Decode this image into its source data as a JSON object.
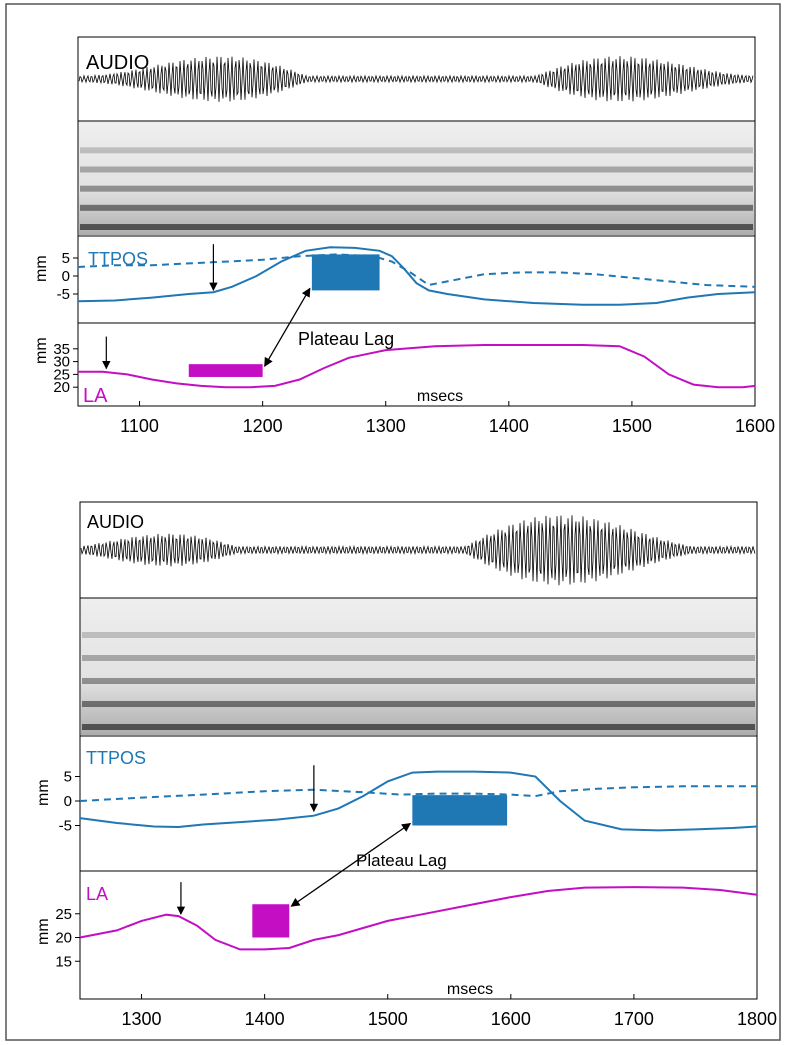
{
  "colors": {
    "ttpos": "#1f77b4",
    "la": "#c30ec3",
    "frame": "#000000",
    "border": "#555555"
  },
  "chart_data": [
    {
      "type": "line",
      "panel_labels": {
        "audio": "AUDIO",
        "ttpos": "TTPOS",
        "la": "LA"
      },
      "ttpos_ylabel": "mm",
      "la_ylabel": "mm",
      "xlabel": "msecs",
      "annotation": "Plateau Lag",
      "xlim": [
        1050,
        1600
      ],
      "xticks": [
        1100,
        1200,
        1300,
        1400,
        1500,
        1600
      ],
      "ttpos_ylim": [
        -10,
        10
      ],
      "ttpos_yticks": [
        5,
        0,
        -5
      ],
      "la_ylim": [
        15,
        40
      ],
      "la_yticks": [
        35,
        30,
        25,
        20
      ],
      "ttpos_series": [
        {
          "style": "solid",
          "x": [
            1050,
            1080,
            1110,
            1140,
            1160,
            1175,
            1195,
            1215,
            1235,
            1255,
            1275,
            1295,
            1305,
            1315,
            1325,
            1335,
            1350,
            1380,
            1420,
            1460,
            1490,
            1520,
            1545,
            1570,
            1600
          ],
          "y": [
            -7,
            -6.8,
            -6,
            -5,
            -4.5,
            -3,
            0,
            4,
            7,
            8,
            7.8,
            7,
            5.5,
            2,
            -2,
            -4,
            -5,
            -6.5,
            -7.5,
            -8,
            -8,
            -7.5,
            -6,
            -5,
            -4.5
          ]
        },
        {
          "style": "dashed",
          "x": [
            1050,
            1080,
            1110,
            1140,
            1170,
            1200,
            1230,
            1260,
            1290,
            1305,
            1320,
            1335,
            1350,
            1380,
            1410,
            1440,
            1470,
            1500,
            1530,
            1560,
            1600
          ],
          "y": [
            2.5,
            3,
            3,
            3.5,
            4,
            4.5,
            5.5,
            6,
            5.5,
            4,
            1,
            -2.5,
            -1.5,
            0.5,
            1,
            1,
            0.5,
            -0.5,
            -1.5,
            -2.5,
            -3
          ]
        }
      ],
      "la_series": {
        "x": [
          1050,
          1070,
          1090,
          1110,
          1130,
          1150,
          1170,
          1190,
          1210,
          1230,
          1250,
          1270,
          1300,
          1340,
          1380,
          1420,
          1460,
          1490,
          1510,
          1530,
          1550,
          1570,
          1590,
          1600
        ],
        "y": [
          26,
          26,
          25,
          23,
          21.5,
          20.5,
          20,
          20,
          20.5,
          23,
          27.5,
          31.5,
          34.5,
          36,
          36.5,
          36.5,
          36.5,
          36,
          32,
          25,
          21,
          20,
          20,
          20.5
        ]
      },
      "ttpos_plateau": {
        "x0": 1240,
        "x1": 1295,
        "y0": -4,
        "y1": 6
      },
      "la_plateau": {
        "x0": 1140,
        "x1": 1200,
        "y0": 24,
        "y1": 29
      },
      "ttpos_onset_arrow": {
        "x": 1160,
        "y": -4.5
      },
      "la_onset_arrow": {
        "x": 1073,
        "y": 26.5
      }
    },
    {
      "type": "line",
      "panel_labels": {
        "audio": "AUDIO",
        "ttpos": "TTPOS",
        "la": "LA"
      },
      "ttpos_ylabel": "mm",
      "la_ylabel": "mm",
      "xlabel": "msecs",
      "annotation": "Plateau Lag",
      "xlim": [
        1250,
        1800
      ],
      "xticks": [
        1300,
        1400,
        1500,
        1600,
        1700,
        1800
      ],
      "ttpos_ylim": [
        -10,
        10
      ],
      "ttpos_yticks": [
        5,
        0,
        -5
      ],
      "la_ylim": [
        10,
        30
      ],
      "la_yticks": [
        25,
        20,
        15
      ],
      "ttpos_series": [
        {
          "style": "solid",
          "x": [
            1250,
            1280,
            1310,
            1330,
            1350,
            1380,
            1410,
            1440,
            1460,
            1480,
            1500,
            1520,
            1540,
            1570,
            1600,
            1620,
            1640,
            1660,
            1690,
            1720,
            1750,
            1780,
            1800
          ],
          "y": [
            -3.5,
            -4.5,
            -5.2,
            -5.3,
            -4.8,
            -4.3,
            -3.8,
            -3,
            -1.5,
            1,
            4,
            5.8,
            6,
            6,
            5.8,
            5,
            0,
            -4,
            -5.8,
            -6,
            -5.8,
            -5.5,
            -5.2
          ]
        },
        {
          "style": "dashed",
          "x": [
            1250,
            1300,
            1350,
            1400,
            1440,
            1480,
            1510,
            1540,
            1570,
            1600,
            1620,
            1640,
            1670,
            1700,
            1740,
            1780,
            1800
          ],
          "y": [
            0,
            0.7,
            1.3,
            2,
            2.3,
            1.8,
            1.3,
            1.5,
            1.5,
            1.3,
            1,
            2,
            2.5,
            2.8,
            3,
            3,
            3
          ]
        }
      ],
      "la_series": {
        "x": [
          1250,
          1280,
          1300,
          1320,
          1330,
          1345,
          1360,
          1380,
          1400,
          1420,
          1440,
          1460,
          1480,
          1500,
          1530,
          1560,
          1600,
          1630,
          1660,
          1700,
          1740,
          1770,
          1800
        ],
        "y": [
          20,
          21.5,
          23.5,
          24.8,
          24.5,
          22.5,
          19.5,
          17.5,
          17.5,
          17.8,
          19.5,
          20.5,
          22,
          23.5,
          25,
          26.5,
          28.5,
          29.8,
          30.5,
          30.6,
          30.5,
          30,
          29
        ]
      },
      "ttpos_plateau": {
        "x0": 1520,
        "x1": 1597,
        "y0": -5,
        "y1": 1.2
      },
      "la_plateau": {
        "x0": 1390,
        "x1": 1420,
        "y0": 20,
        "y1": 27
      },
      "ttpos_onset_arrow": {
        "x": 1440,
        "y": -2.5
      },
      "la_onset_arrow": {
        "x": 1332,
        "y": 24.5
      }
    }
  ]
}
